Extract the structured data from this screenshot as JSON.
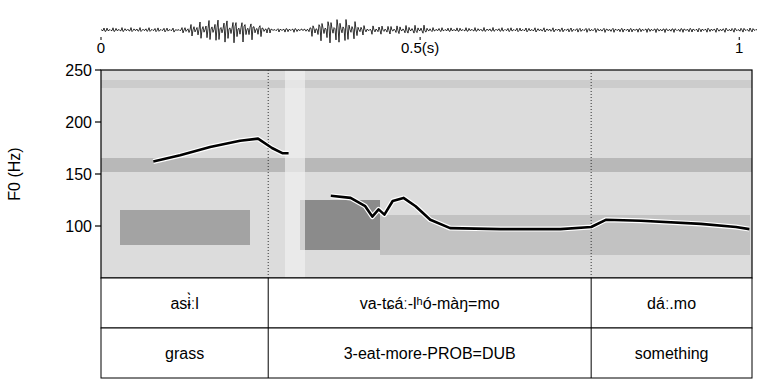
{
  "chart_data": {
    "type": "line",
    "y_label": "F0 (Hz)",
    "x": [
      0.082,
      0.124,
      0.171,
      0.218,
      0.246,
      0.268,
      0.284,
      0.294,
      0.327,
      0.36,
      0.391,
      0.414,
      0.425,
      0.435,
      0.444,
      0.457,
      0.474,
      0.493,
      0.516,
      0.547,
      0.626,
      0.72,
      0.768,
      0.791,
      0.846,
      0.94,
      0.995,
      1.016
    ],
    "series": [
      {
        "color": "#000000",
        "values": [
          162,
          168,
          176,
          182,
          184,
          175,
          170,
          170,
          null,
          129,
          127,
          119,
          109,
          116,
          111,
          124,
          127,
          119,
          106,
          98,
          97,
          97,
          99,
          106,
          105,
          102,
          99,
          97
        ]
      }
    ],
    "xlim": [
      0,
      1.02
    ],
    "xticks": [
      0,
      {
        "value": 0.5,
        "label": "0.5(s)"
      },
      1
    ],
    "ylim": [
      50,
      250
    ],
    "yticks": [
      100,
      150,
      200,
      250
    ],
    "tiers": [
      {
        "intervals": [
          {
            "start": 0,
            "end": 0.262,
            "text": "asɨ̀ːl"
          },
          {
            "start": 0.262,
            "end": 0.768,
            "text": "va-tɕáː-lʰó-màŋ=mo"
          },
          {
            "start": 0.768,
            "end": 1.02,
            "text": "dáː.mo"
          }
        ]
      },
      {
        "intervals": [
          {
            "start": 0,
            "end": 0.262,
            "text": "grass"
          },
          {
            "start": 0.262,
            "end": 0.768,
            "text": "3-eat-more-PROB=DUB"
          },
          {
            "start": 0.768,
            "end": 1.02,
            "text": "something"
          }
        ]
      }
    ]
  }
}
